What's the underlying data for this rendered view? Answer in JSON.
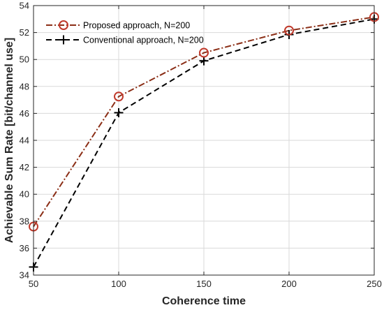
{
  "chart_data": {
    "type": "line",
    "x": [
      50,
      100,
      150,
      200,
      250
    ],
    "series": [
      {
        "name": "Proposed approach, N=200",
        "values": [
          37.6,
          47.25,
          50.5,
          52.15,
          53.15
        ],
        "color": "#c0392b",
        "line_color": "#8b2e16",
        "line_style": "dash-dot",
        "marker": "circle"
      },
      {
        "name": "Conventional approach, N=200",
        "values": [
          34.6,
          46.05,
          49.9,
          51.85,
          53.0
        ],
        "color": "#000000",
        "line_style": "dashed",
        "marker": "plus"
      }
    ],
    "xlabel": "Coherence time",
    "ylabel": "Achievable Sum Rate [bit/channel use]",
    "xlim": [
      50,
      250
    ],
    "ylim": [
      34,
      54
    ],
    "xticks": [
      "50",
      "100",
      "150",
      "200",
      "250"
    ],
    "yticks": [
      "34",
      "36",
      "38",
      "40",
      "42",
      "44",
      "46",
      "48",
      "50",
      "52",
      "54"
    ],
    "grid": true,
    "legend_position": "top-left"
  }
}
